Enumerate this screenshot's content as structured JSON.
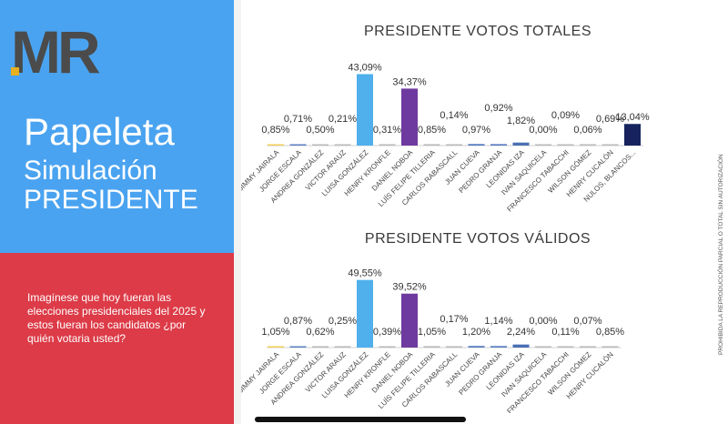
{
  "logo": {
    "text": "MR"
  },
  "title": {
    "line1": "Papeleta",
    "line2": "Simulación",
    "line3": "PRESIDENTE"
  },
  "question": "Imagínese que hoy fueran las elecciones presidenciales del 2025 y estos fueran los candidatos ¿por quién votaria usted?",
  "side_note": "PROHIBIDA LA REPRODUCCIÓN PARCIAL O TOTAL SIN AUTORIZACIÓN",
  "colors": {
    "left_blue": "#4aa3f0",
    "left_red": "#dc3b47",
    "logo_gray": "#4b4b4b",
    "logo_gold": "#e8b020"
  },
  "chart_data": [
    {
      "type": "bar",
      "title": "PRESIDENTE VOTOS TOTALES",
      "categories": [
        "JIMMY JAIRALA",
        "JORGE ESCALA",
        "ANDREA GONZÁLEZ",
        "VICTOR ARAUZ",
        "LUISA GONZÁLEZ",
        "HENRY KRONFLE",
        "DANIEL NOBOA",
        "LUÍS FELIPE TILLERIA",
        "CARLOS RABASCALL",
        "JUAN CUEVA",
        "PEDRO GRANJA",
        "LEONIDAS IZA",
        "IVAN SAQUICELA",
        "FRANCESCO TABACCHI",
        "WILSON GÓMEZ",
        "HENRY CUCALÓN",
        "NULOS, BLANCOS..."
      ],
      "values": [
        0.85,
        0.71,
        0.5,
        0.21,
        43.09,
        0.31,
        34.37,
        0.85,
        0.14,
        0.97,
        0.92,
        1.82,
        0.0,
        0.09,
        0.06,
        0.69,
        13.04
      ],
      "labels": [
        "0,85%",
        "0,71%",
        "0,50%",
        "0,21%",
        "43,09%",
        "0,31%",
        "34,37%",
        "0,85%",
        "0,14%",
        "0,97%",
        "0,92%",
        "1,82%",
        "0,00%",
        "0,09%",
        "0,06%",
        "0,69%",
        "13,04%"
      ],
      "colors": [
        "#f2cf5b",
        "#5b7fc4",
        "#b8b8b8",
        "#b8b8b8",
        "#4fb0ec",
        "#b8b8b8",
        "#6f3aa0",
        "#b8b8b8",
        "#b8b8b8",
        "#5b7fc4",
        "#5b7fc4",
        "#4a6fb5",
        "#b8b8b8",
        "#b8b8b8",
        "#b8b8b8",
        "#b8b8b8",
        "#16235e"
      ],
      "ylim": [
        0,
        45
      ]
    },
    {
      "type": "bar",
      "title": "PRESIDENTE VOTOS VÁLIDOS",
      "categories": [
        "JIMMY JAIRALA",
        "JORGE ESCALA",
        "ANDREA GONZÁLEZ",
        "VICTOR ARAUZ",
        "LUISA GONZÁLEZ",
        "HENRY KRONFLE",
        "DANIEL NOBOA",
        "LUÍS FELIPE TILLERIA",
        "CARLOS RABASCALL",
        "JUAN CUEVA",
        "PEDRO GRANJA",
        "LEONIDAS IZA",
        "IVAN SAQUICELA",
        "FRANCESCO TABACCHI",
        "WILSON GÓMEZ",
        "HENRY CUCALÓN"
      ],
      "values": [
        1.05,
        0.87,
        0.62,
        0.25,
        49.55,
        0.39,
        39.52,
        1.05,
        0.17,
        1.2,
        1.14,
        2.24,
        0.0,
        0.11,
        0.07,
        0.85
      ],
      "labels": [
        "1,05%",
        "0,87%",
        "0,62%",
        "0,25%",
        "49,55%",
        "0,39%",
        "39,52%",
        "1,05%",
        "0,17%",
        "1,20%",
        "1,14%",
        "2,24%",
        "0,00%",
        "0,11%",
        "0,07%",
        "0,85%"
      ],
      "colors": [
        "#f2cf5b",
        "#5b7fc4",
        "#b8b8b8",
        "#b8b8b8",
        "#4fb0ec",
        "#b8b8b8",
        "#6f3aa0",
        "#b8b8b8",
        "#b8b8b8",
        "#5b7fc4",
        "#5b7fc4",
        "#4a6fb5",
        "#b8b8b8",
        "#b8b8b8",
        "#b8b8b8",
        "#b8b8b8"
      ],
      "ylim": [
        0,
        52
      ]
    }
  ]
}
